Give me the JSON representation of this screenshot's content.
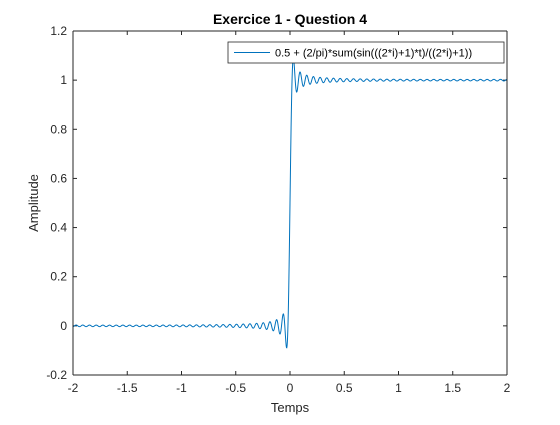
{
  "chart_data": {
    "type": "line",
    "title": "Exercice 1 - Question 4",
    "xlabel": "Temps",
    "ylabel": "Amplitude",
    "xlim": [
      -2,
      2
    ],
    "ylim": [
      -0.2,
      1.2
    ],
    "xticks": [
      -2,
      -1.5,
      -1,
      -0.5,
      0,
      0.5,
      1,
      1.5,
      2
    ],
    "xtick_labels": [
      "-2",
      "-1.5",
      "-1",
      "-0.5",
      "0",
      "0.5",
      "1",
      "1.5",
      "2"
    ],
    "yticks": [
      -0.2,
      0,
      0.2,
      0.4,
      0.6,
      0.8,
      1,
      1.2
    ],
    "ytick_labels": [
      "-0.2",
      "0",
      "0.2",
      "0.4",
      "0.6",
      "0.8",
      "1",
      "1.2"
    ],
    "grid": false,
    "legend_position": "top-right",
    "series": [
      {
        "name": "0.5 + (2/pi)*sum(sin(((2*i)+1)*t)/((2*i)+1))",
        "color": "#0072bd",
        "x": [
          -2,
          -1.5,
          -1,
          -0.5,
          -0.2,
          -0.1,
          -0.05,
          -0.03,
          -0.015,
          0,
          0.015,
          0.03,
          0.05,
          0.1,
          0.2,
          0.5,
          1,
          1.5,
          2
        ],
        "y": [
          0,
          0,
          0,
          0,
          -0.01,
          -0.03,
          0.02,
          -0.08,
          0.1,
          0.5,
          0.9,
          1.08,
          0.98,
          1.03,
          0.99,
          1,
          1,
          1,
          1
        ]
      }
    ]
  }
}
